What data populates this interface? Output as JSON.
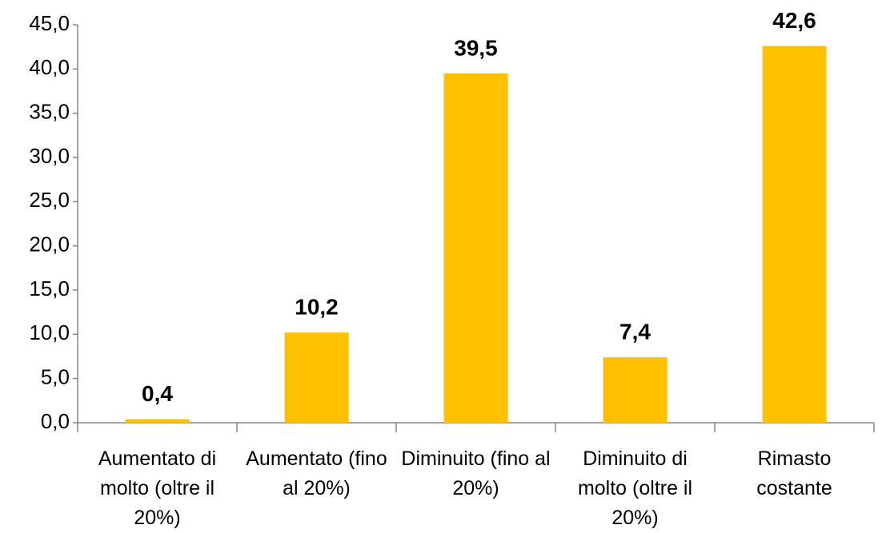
{
  "chart_data": {
    "type": "bar",
    "categories": [
      "Aumentato di molto  (oltre il 20%)",
      "Aumentato (fino al 20%)",
      "Diminuito (fino al 20%)",
      "Diminuito di molto (oltre il 20%)",
      "Rimasto costante"
    ],
    "values": [
      0.4,
      10.2,
      39.5,
      7.4,
      42.6
    ],
    "value_labels": [
      "0,4",
      "10,2",
      "39,5",
      "7,4",
      "42,6"
    ],
    "color": "#ffc000",
    "ylim": [
      0,
      45
    ],
    "yticks": [
      {
        "value": 0,
        "label": "0,0"
      },
      {
        "value": 5,
        "label": "5,0"
      },
      {
        "value": 10,
        "label": "10,0"
      },
      {
        "value": 15,
        "label": "15,0"
      },
      {
        "value": 20,
        "label": "20,0"
      },
      {
        "value": 25,
        "label": "25,0"
      },
      {
        "value": 30,
        "label": "30,0"
      },
      {
        "value": 35,
        "label": "35,0"
      },
      {
        "value": 40,
        "label": "40,0"
      },
      {
        "value": 45,
        "label": "45,0"
      }
    ],
    "grid": false
  }
}
